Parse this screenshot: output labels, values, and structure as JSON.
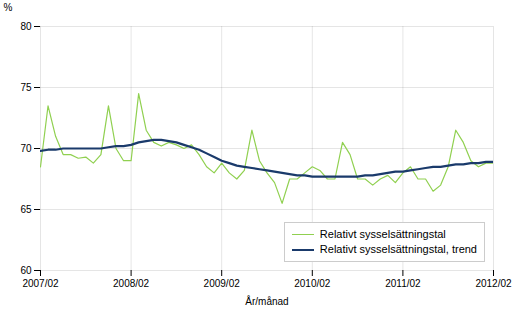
{
  "chart_data": {
    "type": "line",
    "xlabel": "År/månad",
    "ylabel": "%",
    "categories": [
      "2007/02",
      null,
      null,
      null,
      null,
      null,
      null,
      null,
      null,
      null,
      null,
      null,
      "2008/02",
      null,
      null,
      null,
      null,
      null,
      null,
      null,
      null,
      null,
      null,
      null,
      "2009/02",
      null,
      null,
      null,
      null,
      null,
      null,
      null,
      null,
      null,
      null,
      null,
      "2010/02",
      null,
      null,
      null,
      null,
      null,
      null,
      null,
      null,
      null,
      null,
      null,
      "2011/02",
      null,
      null,
      null,
      null,
      null,
      null,
      null,
      null,
      null,
      null,
      null,
      "2012/02"
    ],
    "series": [
      {
        "name": "Relativt sysselsättningstal",
        "color": "#90d050",
        "values": [
          68.5,
          73.5,
          71.0,
          69.5,
          69.5,
          69.2,
          69.3,
          68.8,
          69.5,
          73.5,
          70.0,
          69.0,
          69.0,
          74.5,
          71.5,
          70.5,
          70.2,
          70.5,
          70.3,
          70.0,
          70.3,
          69.5,
          68.5,
          68.0,
          68.8,
          68.0,
          67.5,
          68.2,
          71.5,
          69.0,
          68.0,
          67.2,
          65.5,
          67.5,
          67.5,
          68.0,
          68.5,
          68.2,
          67.5,
          67.5,
          70.5,
          69.5,
          67.5,
          67.5,
          67.0,
          67.5,
          67.8,
          67.2,
          68.0,
          68.5,
          67.5,
          67.5,
          66.5,
          67.0,
          68.5,
          71.5,
          70.5,
          69.0,
          68.5,
          68.8,
          68.8
        ]
      },
      {
        "name": "Relativt sysselsättningstal, trend",
        "color": "#1a3a6b",
        "values": [
          69.8,
          69.9,
          69.9,
          70.0,
          70.0,
          70.0,
          70.0,
          70.0,
          70.0,
          70.1,
          70.2,
          70.2,
          70.3,
          70.5,
          70.6,
          70.7,
          70.7,
          70.6,
          70.5,
          70.3,
          70.1,
          69.9,
          69.6,
          69.3,
          69.0,
          68.8,
          68.6,
          68.5,
          68.4,
          68.3,
          68.2,
          68.1,
          68.0,
          67.9,
          67.8,
          67.8,
          67.7,
          67.7,
          67.7,
          67.7,
          67.7,
          67.7,
          67.7,
          67.8,
          67.8,
          67.9,
          68.0,
          68.1,
          68.1,
          68.2,
          68.3,
          68.4,
          68.5,
          68.5,
          68.6,
          68.7,
          68.7,
          68.8,
          68.8,
          68.9,
          68.9
        ]
      }
    ],
    "ylim": [
      60,
      80
    ],
    "yticks": [
      60,
      65,
      70,
      75,
      80
    ],
    "grid": true,
    "legend": "lower right"
  }
}
